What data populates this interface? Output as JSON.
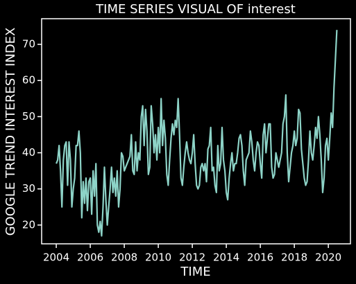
{
  "chart_data": {
    "type": "line",
    "title": "TIME SERIES VISUAL OF interest",
    "xlabel": "TIME",
    "ylabel": "GOOGLE TREND INTEREST INDEX",
    "xlim": [
      2003.14,
      2021.3
    ],
    "ylim": [
      14.8,
      77.1
    ],
    "xticks": [
      2004,
      2006,
      2008,
      2010,
      2012,
      2014,
      2016,
      2018,
      2020
    ],
    "yticks": [
      20,
      30,
      40,
      50,
      60,
      70
    ],
    "grid": false,
    "series": [
      {
        "name": "interest",
        "color": "#8dd3c7",
        "x": [
          2004,
          2004.083,
          2004.167,
          2004.25,
          2004.333,
          2004.417,
          2004.5,
          2004.583,
          2004.667,
          2004.75,
          2004.833,
          2004.917,
          2005,
          2005.083,
          2005.167,
          2005.25,
          2005.333,
          2005.417,
          2005.5,
          2005.583,
          2005.667,
          2005.75,
          2005.833,
          2005.917,
          2006,
          2006.083,
          2006.167,
          2006.25,
          2006.333,
          2006.417,
          2006.5,
          2006.583,
          2006.667,
          2006.75,
          2006.833,
          2006.917,
          2007,
          2007.083,
          2007.167,
          2007.25,
          2007.333,
          2007.417,
          2007.5,
          2007.583,
          2007.667,
          2007.75,
          2007.833,
          2007.917,
          2008,
          2008.083,
          2008.167,
          2008.25,
          2008.333,
          2008.417,
          2008.5,
          2008.583,
          2008.667,
          2008.75,
          2008.833,
          2008.917,
          2009,
          2009.083,
          2009.167,
          2009.25,
          2009.333,
          2009.417,
          2009.5,
          2009.583,
          2009.667,
          2009.75,
          2009.833,
          2009.917,
          2010,
          2010.083,
          2010.167,
          2010.25,
          2010.333,
          2010.417,
          2010.5,
          2010.583,
          2010.667,
          2010.75,
          2010.833,
          2010.917,
          2011,
          2011.083,
          2011.167,
          2011.25,
          2011.333,
          2011.417,
          2011.5,
          2011.583,
          2011.667,
          2011.75,
          2011.833,
          2011.917,
          2012,
          2012.083,
          2012.167,
          2012.25,
          2012.333,
          2012.417,
          2012.5,
          2012.583,
          2012.667,
          2012.75,
          2012.833,
          2012.917,
          2013,
          2013.083,
          2013.167,
          2013.25,
          2013.333,
          2013.417,
          2013.5,
          2013.583,
          2013.667,
          2013.75,
          2013.833,
          2013.917,
          2014,
          2014.083,
          2014.167,
          2014.25,
          2014.333,
          2014.417,
          2014.5,
          2014.583,
          2014.667,
          2014.75,
          2014.833,
          2014.917,
          2015,
          2015.083,
          2015.167,
          2015.25,
          2015.333,
          2015.417,
          2015.5,
          2015.583,
          2015.667,
          2015.75,
          2015.833,
          2015.917,
          2016,
          2016.083,
          2016.167,
          2016.25,
          2016.333,
          2016.417,
          2016.5,
          2016.583,
          2016.667,
          2016.75,
          2016.833,
          2016.917,
          2017,
          2017.083,
          2017.167,
          2017.25,
          2017.333,
          2017.417,
          2017.5,
          2017.583,
          2017.667,
          2017.75,
          2017.833,
          2017.917,
          2018,
          2018.083,
          2018.167,
          2018.25,
          2018.333,
          2018.417,
          2018.5,
          2018.583,
          2018.667,
          2018.75,
          2018.833,
          2018.917,
          2019,
          2019.083,
          2019.167,
          2019.25,
          2019.333,
          2019.417,
          2019.5,
          2019.583,
          2019.667,
          2019.75,
          2019.833,
          2019.917,
          2020,
          2020.083,
          2020.167,
          2020.25,
          2020.333,
          2020.417,
          2020.5
        ],
        "values": [
          37,
          38,
          42,
          35,
          25,
          38,
          42,
          43,
          31,
          43,
          38,
          25,
          30,
          33,
          42,
          42,
          46,
          40,
          22,
          32,
          26,
          33,
          24,
          32,
          33,
          23,
          35,
          28,
          37,
          20,
          18,
          21,
          17,
          25,
          36,
          27,
          20,
          25,
          30,
          36,
          29,
          33,
          28,
          35,
          25,
          30,
          40,
          39,
          35,
          36,
          37,
          38,
          39,
          45,
          35,
          34,
          43,
          35,
          40,
          38,
          50,
          53,
          42,
          52,
          46,
          34,
          36,
          53,
          48,
          40,
          45,
          38,
          47,
          40,
          55,
          42,
          49,
          44,
          34,
          31,
          38,
          44,
          48,
          45,
          49,
          47,
          55,
          45,
          33,
          31,
          36,
          40,
          43,
          40,
          38,
          37,
          40,
          45,
          37,
          31,
          30,
          31,
          36,
          37,
          35,
          37,
          32,
          41,
          42,
          47,
          35,
          36,
          31,
          29,
          42,
          35,
          37,
          47,
          38,
          35,
          29,
          27,
          33,
          37,
          40,
          35,
          37,
          37,
          40,
          44,
          45,
          42,
          35,
          31,
          38,
          39,
          40,
          46,
          43,
          38,
          35,
          40,
          43,
          42,
          37,
          33,
          45,
          48,
          40,
          44,
          48,
          48,
          36,
          33,
          34,
          40,
          38,
          36,
          38,
          40,
          48,
          50,
          56,
          40,
          32,
          36,
          40,
          42,
          46,
          42,
          44,
          52,
          51,
          41,
          37,
          33,
          31,
          32,
          38,
          46,
          40,
          38,
          42,
          47,
          44,
          50,
          45,
          38,
          29,
          33,
          42,
          44,
          38,
          44,
          51,
          47,
          58,
          66,
          74
        ]
      }
    ]
  }
}
